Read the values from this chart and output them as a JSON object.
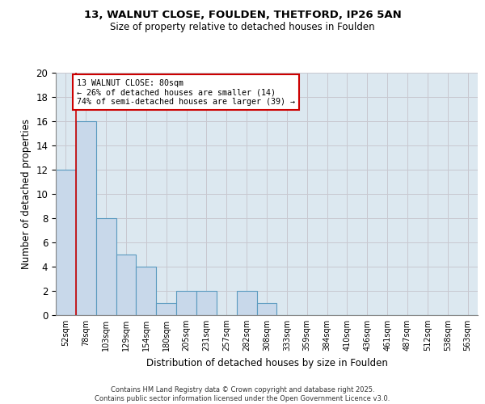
{
  "title1": "13, WALNUT CLOSE, FOULDEN, THETFORD, IP26 5AN",
  "title2": "Size of property relative to detached houses in Foulden",
  "xlabel": "Distribution of detached houses by size in Foulden",
  "ylabel": "Number of detached properties",
  "footer1": "Contains HM Land Registry data © Crown copyright and database right 2025.",
  "footer2": "Contains public sector information licensed under the Open Government Licence v3.0.",
  "bin_labels": [
    "52sqm",
    "78sqm",
    "103sqm",
    "129sqm",
    "154sqm",
    "180sqm",
    "205sqm",
    "231sqm",
    "257sqm",
    "282sqm",
    "308sqm",
    "333sqm",
    "359sqm",
    "384sqm",
    "410sqm",
    "436sqm",
    "461sqm",
    "487sqm",
    "512sqm",
    "538sqm",
    "563sqm"
  ],
  "bar_values": [
    12,
    16,
    8,
    5,
    4,
    1,
    2,
    2,
    0,
    2,
    1,
    0,
    0,
    0,
    0,
    0,
    0,
    0,
    0,
    0,
    0
  ],
  "bar_color": "#c8d8ea",
  "bar_edge_color": "#5a9abf",
  "grid_color": "#c8c8d0",
  "bg_color": "#dce8f0",
  "subject_line_color": "#cc0000",
  "annotation_text": "13 WALNUT CLOSE: 80sqm\n← 26% of detached houses are smaller (14)\n74% of semi-detached houses are larger (39) →",
  "annotation_box_color": "#ffffff",
  "annotation_box_edge": "#cc0000",
  "ylim": [
    0,
    20
  ],
  "yticks": [
    0,
    2,
    4,
    6,
    8,
    10,
    12,
    14,
    16,
    18,
    20
  ]
}
